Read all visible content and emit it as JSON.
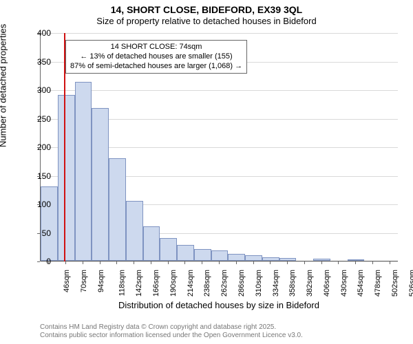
{
  "title": "14, SHORT CLOSE, BIDEFORD, EX39 3QL",
  "subtitle": "Size of property relative to detached houses in Bideford",
  "ylabel": "Number of detached properties",
  "xlabel": "Distribution of detached houses by size in Bideford",
  "footer_line1": "Contains HM Land Registry data © Crown copyright and database right 2025.",
  "footer_line2": "Contains public sector information licensed under the Open Government Licence v3.0.",
  "chart": {
    "type": "histogram",
    "ylim": [
      0,
      400
    ],
    "ytick_step": 50,
    "grid_color": "#d9d9d9",
    "bar_fill": "#cdd9ee",
    "bar_stroke": "#7e93c1",
    "background": "#ffffff",
    "vline_color": "#d01010",
    "vline_value": 74,
    "x_start": 40,
    "x_step": 24,
    "x_bins": 21,
    "x_label_start": 46,
    "x_label_suffix": "sqm",
    "values": [
      130,
      290,
      313,
      268,
      180,
      105,
      60,
      40,
      28,
      20,
      18,
      12,
      10,
      6,
      5,
      0,
      4,
      0,
      3,
      0,
      0
    ]
  },
  "annotation": {
    "line1": "14 SHORT CLOSE: 74sqm",
    "line2": "← 13% of detached houses are smaller (155)",
    "line3": "87% of semi-detached houses are larger (1,068) →"
  }
}
